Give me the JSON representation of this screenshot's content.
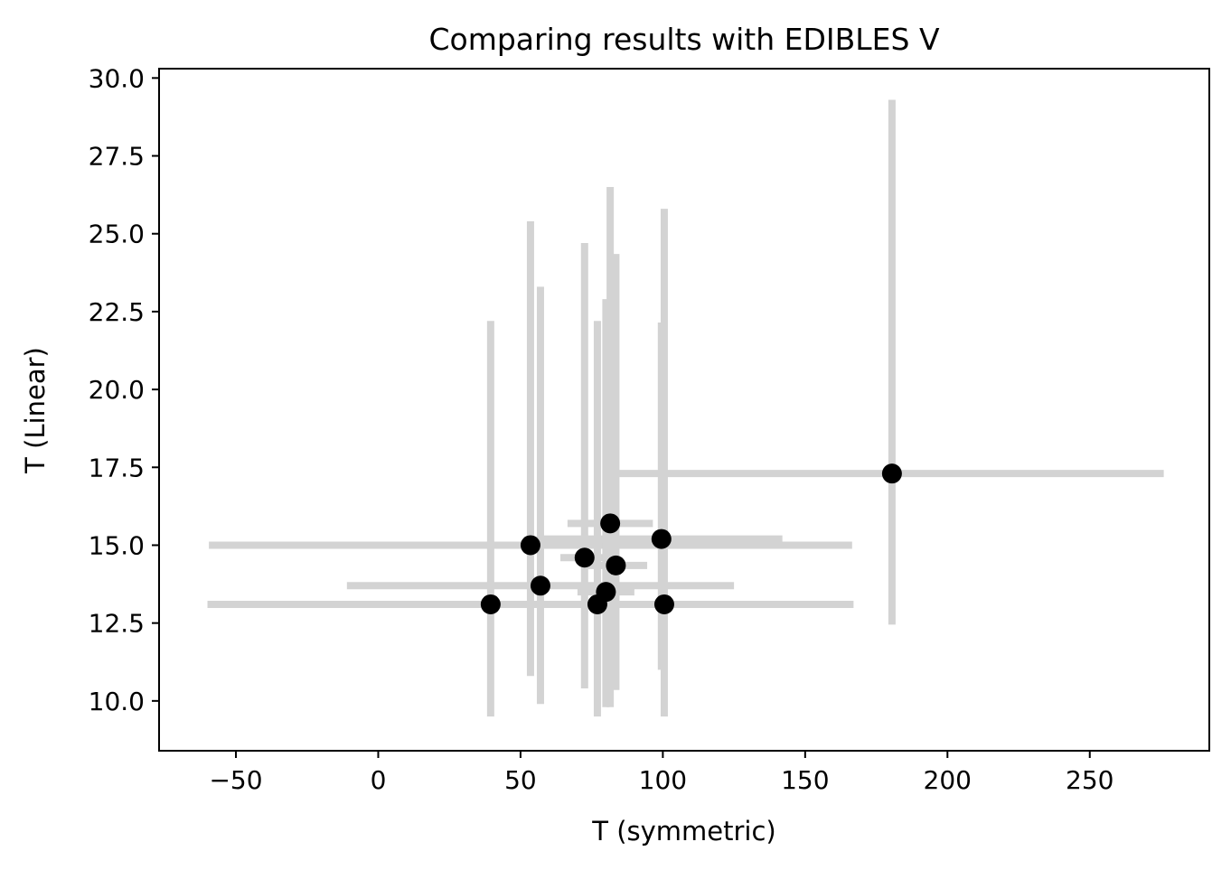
{
  "chart_data": {
    "type": "scatter",
    "title": "Comparing results with EDIBLES V",
    "xlabel": "T (symmetric)",
    "ylabel": "T (Linear)",
    "xlim": [
      -77,
      292
    ],
    "ylim": [
      8.4,
      30.3
    ],
    "xticks": [
      -50,
      0,
      50,
      100,
      150,
      200,
      250
    ],
    "xtick_labels": [
      "−50",
      "0",
      "50",
      "100",
      "150",
      "200",
      "250"
    ],
    "yticks": [
      10.0,
      12.5,
      15.0,
      17.5,
      20.0,
      22.5,
      25.0,
      27.5,
      30.0
    ],
    "ytick_labels": [
      "10.0",
      "12.5",
      "15.0",
      "17.5",
      "20.0",
      "22.5",
      "25.0",
      "27.5",
      "30.0"
    ],
    "grid": false,
    "marker_color": "#000000",
    "errorbar_color": "#d3d3d3",
    "points": [
      {
        "x": 39.5,
        "y": 13.1,
        "xerr": [
          24.5,
          111.0
        ],
        "yerr": [
          3.6,
          9.1
        ]
      },
      {
        "x": 53.5,
        "y": 15.0,
        "xerr": [
          113.0,
          113.0
        ],
        "yerr": [
          4.2,
          10.4
        ]
      },
      {
        "x": 57.0,
        "y": 13.7,
        "xerr": [
          68.0,
          68.0
        ],
        "yerr": [
          3.8,
          9.6
        ]
      },
      {
        "x": 72.5,
        "y": 14.6,
        "xerr": [
          8.5,
          8.5
        ],
        "yerr": [
          4.2,
          10.1
        ]
      },
      {
        "x": 77.0,
        "y": 13.1,
        "xerr": [
          14.0,
          14.0
        ],
        "yerr": [
          3.6,
          9.1
        ]
      },
      {
        "x": 80.0,
        "y": 13.5,
        "xerr": [
          10.0,
          10.0
        ],
        "yerr": [
          3.7,
          9.4
        ]
      },
      {
        "x": 81.5,
        "y": 15.7,
        "xerr": [
          15.0,
          15.0
        ],
        "yerr": [
          5.9,
          10.8
        ]
      },
      {
        "x": 83.5,
        "y": 14.35,
        "xerr": [
          11.0,
          11.0
        ],
        "yerr": [
          4.0,
          10.0
        ]
      },
      {
        "x": 99.5,
        "y": 15.2,
        "xerr": [
          42.5,
          42.5
        ],
        "yerr": [
          4.2,
          6.95
        ]
      },
      {
        "x": 100.5,
        "y": 13.1,
        "xerr": [
          160.5,
          66.5
        ],
        "yerr": [
          3.6,
          12.7
        ]
      },
      {
        "x": 180.5,
        "y": 17.3,
        "xerr": [
          96.5,
          95.5
        ],
        "yerr": [
          4.85,
          12.0
        ]
      }
    ]
  }
}
